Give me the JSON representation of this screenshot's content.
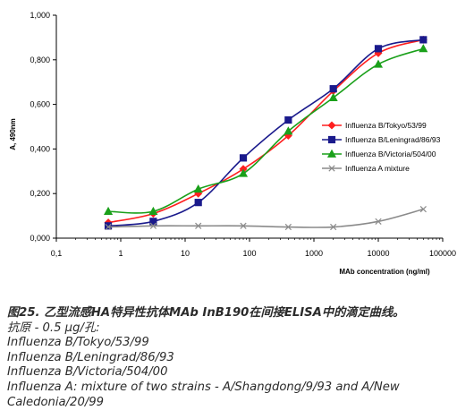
{
  "chart_data": {
    "type": "line",
    "title": "",
    "xlabel": "MAb concentration (ng/ml)",
    "ylabel": "A, 490nm",
    "xscale": "log",
    "xlim": [
      0.1,
      100000
    ],
    "ylim": [
      0,
      1
    ],
    "x_ticks": [
      "0,1",
      "1",
      "10",
      "100",
      "1000",
      "10000",
      "100000"
    ],
    "y_ticks": [
      "0,000",
      "0,200",
      "0,400",
      "0,600",
      "0,800",
      "1,000"
    ],
    "grid": false,
    "legend_position": "right",
    "series": [
      {
        "name": "Influenza B/Tokyo/53/99",
        "color": "#ff1f1f",
        "marker": "diamond",
        "x": [
          0.64,
          3.2,
          16,
          80,
          400,
          2000,
          10000,
          50000
        ],
        "y": [
          0.07,
          0.11,
          0.2,
          0.31,
          0.46,
          0.66,
          0.83,
          0.89
        ]
      },
      {
        "name": "Influenza B/Leningrad/86/93",
        "color": "#1a1a8c",
        "marker": "square",
        "x": [
          0.64,
          3.2,
          16,
          80,
          400,
          2000,
          10000,
          50000
        ],
        "y": [
          0.055,
          0.075,
          0.16,
          0.36,
          0.53,
          0.67,
          0.85,
          0.89
        ]
      },
      {
        "name": "Influenza B/Victoria/504/00",
        "color": "#1aa01a",
        "marker": "triangle",
        "x": [
          0.64,
          3.2,
          16,
          80,
          400,
          2000,
          10000,
          50000
        ],
        "y": [
          0.12,
          0.12,
          0.22,
          0.29,
          0.48,
          0.63,
          0.78,
          0.85
        ]
      },
      {
        "name": "Influenza A mixture",
        "color": "#8a8a8a",
        "marker": "x",
        "x": [
          0.64,
          3.2,
          16,
          80,
          400,
          2000,
          10000,
          50000
        ],
        "y": [
          0.05,
          0.055,
          0.055,
          0.055,
          0.05,
          0.05,
          0.075,
          0.13
        ]
      }
    ]
  },
  "caption": {
    "title": "图25. 乙型流感HA特异性抗体MAb InB190在间接ELISA中的滴定曲线。",
    "lines": [
      "抗原 - 0.5 μg/孔:",
      "Influenza B/Tokyo/53/99",
      "Influenza B/Leningrad/86/93",
      "Influenza B/Victoria/504/00",
      "Influenza A: mixture of two strains - A/Shangdong/9/93 and A/New",
      "Caledonia/20/99"
    ]
  }
}
